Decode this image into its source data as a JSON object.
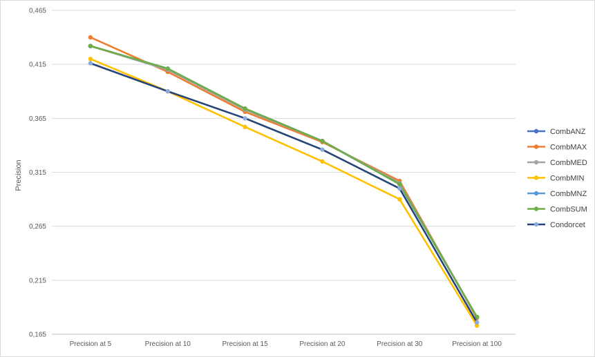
{
  "chart_data": {
    "type": "line",
    "title": "",
    "xlabel": "",
    "ylabel": "Precision",
    "categories": [
      "Precision at 5",
      "Precision at 10",
      "Precision at 15",
      "Precision at 20",
      "Precision at 30",
      "Precision at 100"
    ],
    "y_ticks": [
      "0,165",
      "0,215",
      "0,265",
      "0,315",
      "0,365",
      "0,415",
      "0,465"
    ],
    "ylim": [
      0.165,
      0.465
    ],
    "grid": true,
    "legend_position": "right",
    "series": [
      {
        "name": "CombANZ",
        "color": "#4472c4",
        "values": [
          0.432,
          0.411,
          0.374,
          0.344,
          0.304,
          0.181
        ]
      },
      {
        "name": "CombMAX",
        "color": "#ed7d31",
        "values": [
          0.44,
          0.408,
          0.371,
          0.343,
          0.307,
          0.18
        ]
      },
      {
        "name": "CombMED",
        "color": "#a5a5a5",
        "values": [
          0.432,
          0.41,
          0.373,
          0.344,
          0.305,
          0.181
        ]
      },
      {
        "name": "CombMIN",
        "color": "#ffc000",
        "values": [
          0.42,
          0.39,
          0.357,
          0.325,
          0.29,
          0.173
        ]
      },
      {
        "name": "CombMNZ",
        "color": "#5b9bd5",
        "values": [
          0.432,
          0.411,
          0.374,
          0.344,
          0.304,
          0.181
        ]
      },
      {
        "name": "CombSUM",
        "color": "#70ad47",
        "values": [
          0.432,
          0.411,
          0.374,
          0.344,
          0.304,
          0.181
        ]
      },
      {
        "name": "Condorcet",
        "color": "#264478",
        "marker_color": "#8faadc",
        "values": [
          0.416,
          0.39,
          0.365,
          0.336,
          0.3,
          0.176
        ]
      }
    ]
  }
}
